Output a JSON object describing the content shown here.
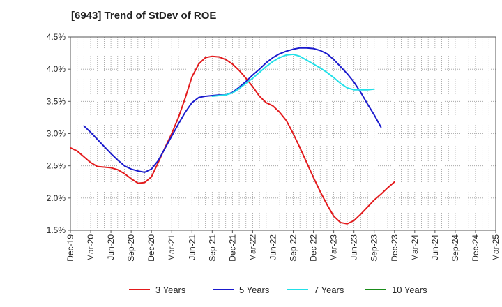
{
  "chart_data": {
    "type": "line",
    "title": "[6943]  Trend of StDev of ROE",
    "xlabel": "",
    "ylabel": "",
    "ylim": [
      1.5,
      4.5
    ],
    "yticks": [
      1.5,
      2.0,
      2.5,
      3.0,
      3.5,
      4.0,
      4.5
    ],
    "ytick_labels": [
      "1.5%",
      "2.0%",
      "2.5%",
      "3.0%",
      "3.5%",
      "4.0%",
      "4.5%"
    ],
    "x_tick_labels": [
      "Dec-19",
      "Mar-20",
      "Jun-20",
      "Sep-20",
      "Dec-20",
      "Mar-21",
      "Jun-21",
      "Sep-21",
      "Dec-21",
      "Mar-22",
      "Jun-22",
      "Sep-22",
      "Dec-22",
      "Mar-23",
      "Jun-23",
      "Sep-23",
      "Dec-23",
      "Mar-24",
      "Jun-24",
      "Sep-24",
      "Dec-24",
      "Mar-25"
    ],
    "grid": true,
    "legend_position": "bottom",
    "series": [
      {
        "name": "3 Years",
        "color": "#e31a1c",
        "points": [
          [
            0,
            2.78
          ],
          [
            1,
            2.73
          ],
          [
            2,
            2.64
          ],
          [
            3,
            2.55
          ],
          [
            4,
            2.49
          ],
          [
            5,
            2.48
          ],
          [
            6,
            2.47
          ],
          [
            7,
            2.44
          ],
          [
            8,
            2.38
          ],
          [
            9,
            2.3
          ],
          [
            10,
            2.23
          ],
          [
            11,
            2.24
          ],
          [
            12,
            2.33
          ],
          [
            13,
            2.55
          ],
          [
            14,
            2.78
          ],
          [
            15,
            3.0
          ],
          [
            16,
            3.25
          ],
          [
            17,
            3.55
          ],
          [
            18,
            3.88
          ],
          [
            19,
            4.08
          ],
          [
            20,
            4.18
          ],
          [
            21,
            4.2
          ],
          [
            22,
            4.19
          ],
          [
            23,
            4.15
          ],
          [
            24,
            4.08
          ],
          [
            25,
            3.98
          ],
          [
            26,
            3.86
          ],
          [
            27,
            3.73
          ],
          [
            28,
            3.58
          ],
          [
            29,
            3.48
          ],
          [
            30,
            3.43
          ],
          [
            31,
            3.33
          ],
          [
            32,
            3.2
          ],
          [
            33,
            3.0
          ],
          [
            34,
            2.78
          ],
          [
            35,
            2.55
          ],
          [
            36,
            2.32
          ],
          [
            37,
            2.1
          ],
          [
            38,
            1.9
          ],
          [
            39,
            1.72
          ],
          [
            40,
            1.62
          ],
          [
            41,
            1.6
          ],
          [
            42,
            1.65
          ],
          [
            43,
            1.75
          ],
          [
            44,
            1.86
          ],
          [
            45,
            1.97
          ],
          [
            46,
            2.06
          ],
          [
            47,
            2.16
          ],
          [
            48,
            2.25
          ]
        ]
      },
      {
        "name": "5 Years",
        "color": "#1a1acd",
        "points": [
          [
            2,
            3.12
          ],
          [
            3,
            3.02
          ],
          [
            4,
            2.91
          ],
          [
            5,
            2.8
          ],
          [
            6,
            2.69
          ],
          [
            7,
            2.59
          ],
          [
            8,
            2.5
          ],
          [
            9,
            2.45
          ],
          [
            10,
            2.42
          ],
          [
            11,
            2.4
          ],
          [
            12,
            2.45
          ],
          [
            13,
            2.58
          ],
          [
            14,
            2.77
          ],
          [
            15,
            2.96
          ],
          [
            16,
            3.15
          ],
          [
            17,
            3.33
          ],
          [
            18,
            3.48
          ],
          [
            19,
            3.56
          ],
          [
            20,
            3.58
          ],
          [
            21,
            3.59
          ],
          [
            22,
            3.6
          ],
          [
            23,
            3.6
          ],
          [
            24,
            3.64
          ],
          [
            25,
            3.72
          ],
          [
            26,
            3.81
          ],
          [
            27,
            3.91
          ],
          [
            28,
            4.0
          ],
          [
            29,
            4.1
          ],
          [
            30,
            4.18
          ],
          [
            31,
            4.24
          ],
          [
            32,
            4.28
          ],
          [
            33,
            4.31
          ],
          [
            34,
            4.33
          ],
          [
            35,
            4.33
          ],
          [
            36,
            4.32
          ],
          [
            37,
            4.29
          ],
          [
            38,
            4.24
          ],
          [
            39,
            4.15
          ],
          [
            40,
            4.04
          ],
          [
            41,
            3.93
          ],
          [
            42,
            3.8
          ],
          [
            43,
            3.64
          ],
          [
            44,
            3.46
          ],
          [
            45,
            3.29
          ],
          [
            46,
            3.1
          ]
        ]
      },
      {
        "name": "7 Years",
        "color": "#22e0e8",
        "points": [
          [
            21,
            3.58
          ],
          [
            22,
            3.59
          ],
          [
            23,
            3.6
          ],
          [
            24,
            3.63
          ],
          [
            25,
            3.7
          ],
          [
            26,
            3.78
          ],
          [
            27,
            3.86
          ],
          [
            28,
            3.95
          ],
          [
            29,
            4.04
          ],
          [
            30,
            4.12
          ],
          [
            31,
            4.18
          ],
          [
            32,
            4.22
          ],
          [
            33,
            4.23
          ],
          [
            34,
            4.2
          ],
          [
            35,
            4.14
          ],
          [
            36,
            4.08
          ],
          [
            37,
            4.02
          ],
          [
            38,
            3.95
          ],
          [
            39,
            3.87
          ],
          [
            40,
            3.78
          ],
          [
            41,
            3.71
          ],
          [
            42,
            3.68
          ],
          [
            43,
            3.68
          ],
          [
            44,
            3.68
          ],
          [
            45,
            3.69
          ]
        ]
      },
      {
        "name": "10 Years",
        "color": "#1a8c1a",
        "points": []
      }
    ]
  }
}
